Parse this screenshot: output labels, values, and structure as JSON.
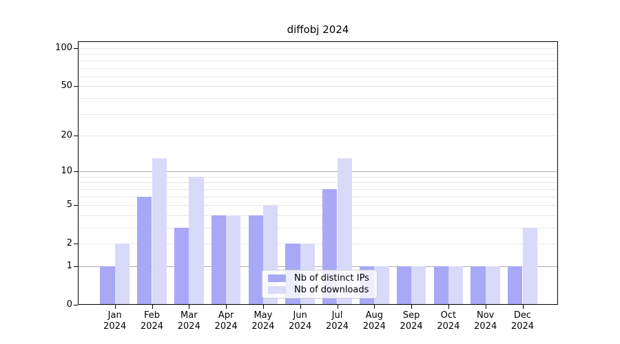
{
  "title": "diffobj 2024",
  "chart_data": {
    "type": "bar",
    "title": "diffobj 2024",
    "categories": [
      "Jan",
      "Feb",
      "Mar",
      "Apr",
      "May",
      "Jun",
      "Jul",
      "Aug",
      "Sep",
      "Oct",
      "Nov",
      "Dec"
    ],
    "year_label": "2024",
    "series": [
      {
        "name": "Nb of distinct IPs",
        "color": "#a8a8f6",
        "values": [
          1,
          6,
          3,
          4,
          4,
          2,
          7,
          1,
          1,
          1,
          1,
          1
        ]
      },
      {
        "name": "Nb of downloads",
        "color": "#d9d9fa",
        "values": [
          2,
          13,
          9,
          4,
          5,
          2,
          13,
          1,
          1,
          1,
          1,
          3
        ]
      }
    ],
    "xlabel": "",
    "ylabel": "",
    "yscale": "log1p",
    "ylim": [
      0,
      113
    ],
    "y_tick_labels": [
      0,
      1,
      2,
      5,
      10,
      20,
      50,
      100
    ],
    "y_gridlines_major": [
      1,
      10
    ],
    "y_gridlines_minor": [
      2,
      3,
      4,
      5,
      6,
      7,
      8,
      9,
      20,
      30,
      40,
      50,
      60,
      70,
      80,
      90,
      100
    ],
    "grid": true,
    "legend_position": "lower-center"
  },
  "colors": {
    "major_gridline": "#ababab",
    "minor_gridline": "#e7e7e7",
    "axis": "#000000",
    "legend_border": "#cccccc"
  }
}
